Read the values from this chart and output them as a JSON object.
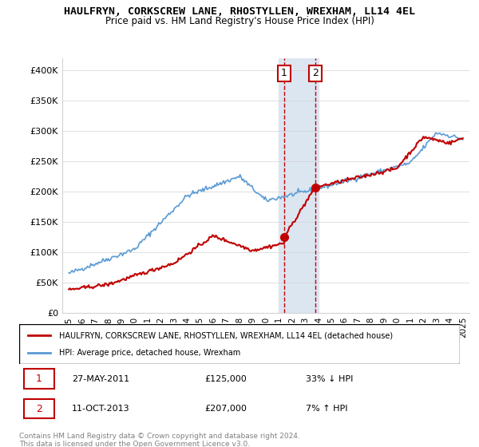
{
  "title": "HAULFRYN, CORKSCREW LANE, RHOSTYLLEN, WREXHAM, LL14 4EL",
  "subtitle": "Price paid vs. HM Land Registry's House Price Index (HPI)",
  "ylabel_ticks": [
    "£0",
    "£50K",
    "£100K",
    "£150K",
    "£200K",
    "£250K",
    "£300K",
    "£350K",
    "£400K"
  ],
  "ytick_values": [
    0,
    50000,
    100000,
    150000,
    200000,
    250000,
    300000,
    350000,
    400000
  ],
  "ylim": [
    0,
    420000
  ],
  "hpi_color": "#5b9bd5",
  "price_color": "#c00000",
  "annotation_color": "#c00000",
  "marker1_date": 2011.4,
  "marker1_price": 125000,
  "marker1_label": "1",
  "marker2_date": 2013.78,
  "marker2_price": 207000,
  "marker2_label": "2",
  "legend_house": "HAULFRYN, CORKSCREW LANE, RHOSTYLLEN, WREXHAM, LL14 4EL (detached house)",
  "legend_hpi": "HPI: Average price, detached house, Wrexham",
  "table_row1": [
    "1",
    "27-MAY-2011",
    "£125,000",
    "33% ↓ HPI"
  ],
  "table_row2": [
    "2",
    "11-OCT-2013",
    "£207,000",
    "7% ↑ HPI"
  ],
  "footnote": "Contains HM Land Registry data © Crown copyright and database right 2024.\nThis data is licensed under the Open Government Licence v3.0.",
  "xlim_start": 1994.5,
  "xlim_end": 2025.5,
  "xtick_years": [
    1995,
    1996,
    1997,
    1998,
    1999,
    2000,
    2001,
    2002,
    2003,
    2004,
    2005,
    2006,
    2007,
    2008,
    2009,
    2010,
    2011,
    2012,
    2013,
    2014,
    2015,
    2016,
    2017,
    2018,
    2019,
    2020,
    2021,
    2022,
    2023,
    2024,
    2025
  ],
  "highlight_x1": 2011.0,
  "highlight_x2": 2014.0,
  "highlight_color": "#dce6f1"
}
